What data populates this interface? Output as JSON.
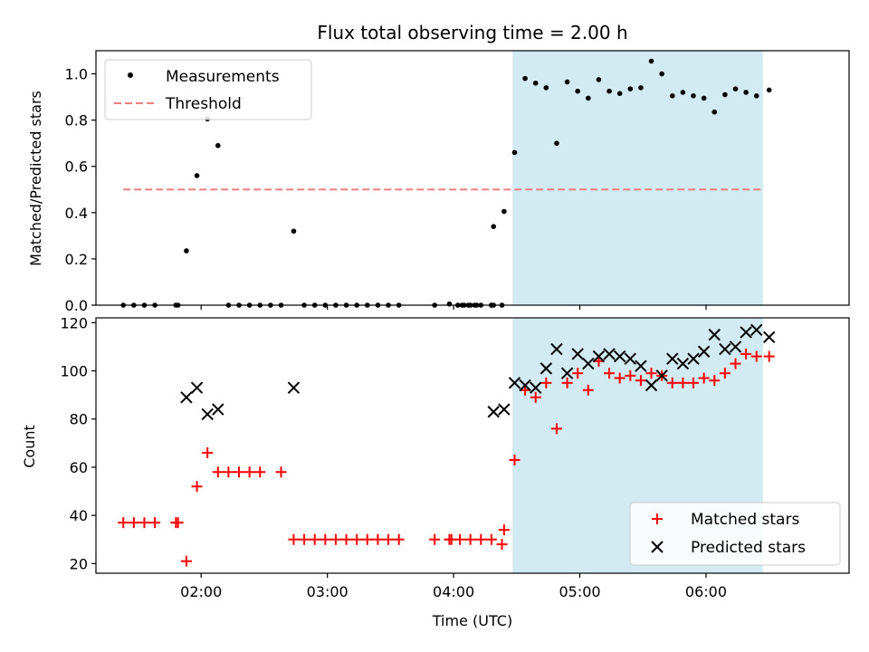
{
  "chart_data": [
    {
      "type": "scatter",
      "title": "Flux total observing time = 2.00 h",
      "xlabel": "",
      "ylabel": "Matched/Predicted stars",
      "xlim": [
        70,
        428
      ],
      "ylim": [
        0,
        1.1
      ],
      "yticks": [
        0.0,
        0.2,
        0.4,
        0.6,
        0.8,
        1.0
      ],
      "ytick_labels": [
        "0.0",
        "0.2",
        "0.4",
        "0.6",
        "0.8",
        "1.0"
      ],
      "shaded_region": {
        "x_start": 268,
        "x_end": 387,
        "color": "#add8e6"
      },
      "threshold": {
        "name": "Threshold",
        "value": 0.5,
        "x_start": 83,
        "x_end": 387,
        "color": "#f08080"
      },
      "legend": {
        "position": "top-left",
        "entries": [
          "Measurements",
          "Threshold"
        ]
      },
      "series": [
        {
          "name": "Measurements",
          "marker": "dot",
          "color": "#000000",
          "points": [
            [
              83,
              0
            ],
            [
              88,
              0
            ],
            [
              93,
              0
            ],
            [
              98,
              0
            ],
            [
              108,
              0
            ],
            [
              109,
              0
            ],
            [
              113,
              0.235
            ],
            [
              118,
              0.56
            ],
            [
              123,
              0.805
            ],
            [
              128,
              0.69
            ],
            [
              133,
              0
            ],
            [
              138,
              0
            ],
            [
              143,
              0
            ],
            [
              148,
              0
            ],
            [
              153,
              0
            ],
            [
              158,
              0
            ],
            [
              164,
              0.32
            ],
            [
              169,
              0
            ],
            [
              174,
              0
            ],
            [
              179,
              0
            ],
            [
              184,
              0
            ],
            [
              189,
              0
            ],
            [
              194,
              0
            ],
            [
              199,
              0
            ],
            [
              204,
              0
            ],
            [
              209,
              0
            ],
            [
              214,
              0
            ],
            [
              231,
              0
            ],
            [
              242,
              0
            ],
            [
              244,
              0
            ],
            [
              248,
              0
            ],
            [
              253,
              0
            ],
            [
              258,
              0
            ],
            [
              263,
              0
            ],
            [
              258,
              0
            ],
            [
              259,
              0
            ],
            [
              238,
              0.005
            ],
            [
              245,
              0
            ],
            [
              251,
              0
            ],
            [
              247,
              0.0
            ],
            [
              250,
              0.0
            ],
            [
              259,
              0.34
            ],
            [
              264,
              0.405
            ],
            [
              269,
              0.66
            ],
            [
              274,
              0.98
            ],
            [
              279,
              0.96
            ],
            [
              284,
              0.94
            ],
            [
              289,
              0.7
            ],
            [
              294,
              0.965
            ],
            [
              299,
              0.925
            ],
            [
              304,
              0.895
            ],
            [
              309,
              0.975
            ],
            [
              314,
              0.925
            ],
            [
              319,
              0.915
            ],
            [
              324,
              0.935
            ],
            [
              329,
              0.94
            ],
            [
              334,
              1.055
            ],
            [
              339,
              1.0
            ],
            [
              344,
              0.905
            ],
            [
              349,
              0.92
            ],
            [
              354,
              0.905
            ],
            [
              359,
              0.895
            ],
            [
              364,
              0.835
            ],
            [
              369,
              0.91
            ],
            [
              374,
              0.935
            ],
            [
              379,
              0.92
            ],
            [
              384,
              0.905
            ],
            [
              390,
              0.93
            ]
          ]
        }
      ]
    },
    {
      "type": "scatter",
      "title": "",
      "xlabel": "Time (UTC)",
      "ylabel": "Count",
      "xlim": [
        70,
        428
      ],
      "ylim": [
        16,
        122
      ],
      "yticks": [
        20,
        40,
        60,
        80,
        100,
        120
      ],
      "ytick_labels": [
        "20",
        "40",
        "60",
        "80",
        "100",
        "120"
      ],
      "xticks": [
        120,
        180,
        240,
        300,
        360
      ],
      "xtick_labels": [
        "02:00",
        "03:00",
        "04:00",
        "05:00",
        "06:00"
      ],
      "shaded_region": {
        "x_start": 268,
        "x_end": 387,
        "color": "#add8e6"
      },
      "legend": {
        "position": "bottom-right",
        "entries": [
          "Matched stars",
          "Predicted stars"
        ]
      },
      "series": [
        {
          "name": "Matched stars",
          "marker": "plus",
          "color": "#ff0000",
          "points": [
            [
              83,
              37
            ],
            [
              88,
              37
            ],
            [
              93,
              37
            ],
            [
              98,
              37
            ],
            [
              108,
              37
            ],
            [
              109,
              37
            ],
            [
              113,
              21
            ],
            [
              118,
              52
            ],
            [
              123,
              66
            ],
            [
              128,
              58
            ],
            [
              133,
              58
            ],
            [
              138,
              58
            ],
            [
              143,
              58
            ],
            [
              148,
              58
            ],
            [
              158,
              58
            ],
            [
              164,
              30
            ],
            [
              169,
              30
            ],
            [
              174,
              30
            ],
            [
              179,
              30
            ],
            [
              184,
              30
            ],
            [
              189,
              30
            ],
            [
              194,
              30
            ],
            [
              199,
              30
            ],
            [
              204,
              30
            ],
            [
              209,
              30
            ],
            [
              214,
              30
            ],
            [
              231,
              30
            ],
            [
              238,
              30
            ],
            [
              239,
              30
            ],
            [
              243,
              30
            ],
            [
              248,
              30
            ],
            [
              253,
              30
            ],
            [
              258,
              30
            ],
            [
              263,
              28
            ],
            [
              264,
              34
            ],
            [
              269,
              63
            ],
            [
              274,
              92
            ],
            [
              279,
              89
            ],
            [
              284,
              95
            ],
            [
              289,
              76
            ],
            [
              294,
              95
            ],
            [
              299,
              99
            ],
            [
              304,
              92
            ],
            [
              309,
              104
            ],
            [
              314,
              99
            ],
            [
              319,
              97
            ],
            [
              324,
              98
            ],
            [
              329,
              96
            ],
            [
              334,
              99
            ],
            [
              339,
              98
            ],
            [
              344,
              95
            ],
            [
              349,
              95
            ],
            [
              354,
              95
            ],
            [
              359,
              97
            ],
            [
              364,
              96
            ],
            [
              369,
              99
            ],
            [
              374,
              103
            ],
            [
              379,
              107
            ],
            [
              384,
              106
            ],
            [
              390,
              106
            ]
          ]
        },
        {
          "name": "Predicted stars",
          "marker": "x",
          "color": "#000000",
          "points": [
            [
              113,
              89
            ],
            [
              118,
              93
            ],
            [
              123,
              82
            ],
            [
              128,
              84
            ],
            [
              164,
              93
            ],
            [
              259,
              83
            ],
            [
              264,
              84
            ],
            [
              269,
              95
            ],
            [
              274,
              94
            ],
            [
              279,
              93
            ],
            [
              284,
              101
            ],
            [
              289,
              109
            ],
            [
              294,
              99
            ],
            [
              299,
              107
            ],
            [
              304,
              103
            ],
            [
              309,
              106
            ],
            [
              314,
              107
            ],
            [
              319,
              106
            ],
            [
              324,
              105
            ],
            [
              329,
              102
            ],
            [
              334,
              94
            ],
            [
              339,
              98
            ],
            [
              344,
              105
            ],
            [
              349,
              103
            ],
            [
              354,
              105
            ],
            [
              359,
              108
            ],
            [
              364,
              115
            ],
            [
              369,
              109
            ],
            [
              374,
              110
            ],
            [
              379,
              116
            ],
            [
              384,
              117
            ],
            [
              390,
              114
            ]
          ]
        }
      ]
    }
  ]
}
